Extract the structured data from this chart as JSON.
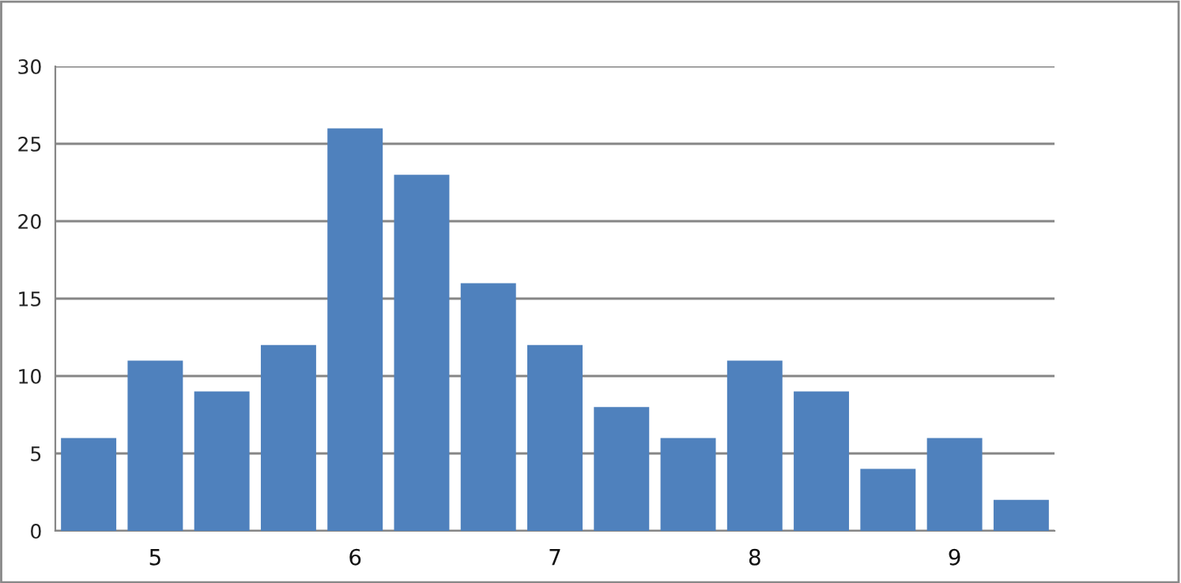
{
  "chart_data": {
    "type": "bar",
    "categories": [
      null,
      "5",
      null,
      null,
      "6",
      null,
      null,
      "7",
      null,
      null,
      "8",
      null,
      null,
      "9",
      null
    ],
    "values": [
      6,
      11,
      9,
      12,
      26,
      23,
      16,
      12,
      8,
      6,
      11,
      9,
      4,
      6,
      2
    ],
    "color": "#4f81bd",
    "ylim": [
      0,
      30
    ],
    "yticks": [
      0,
      5,
      10,
      15,
      20,
      25,
      30
    ],
    "grid": "y",
    "legend": false
  }
}
